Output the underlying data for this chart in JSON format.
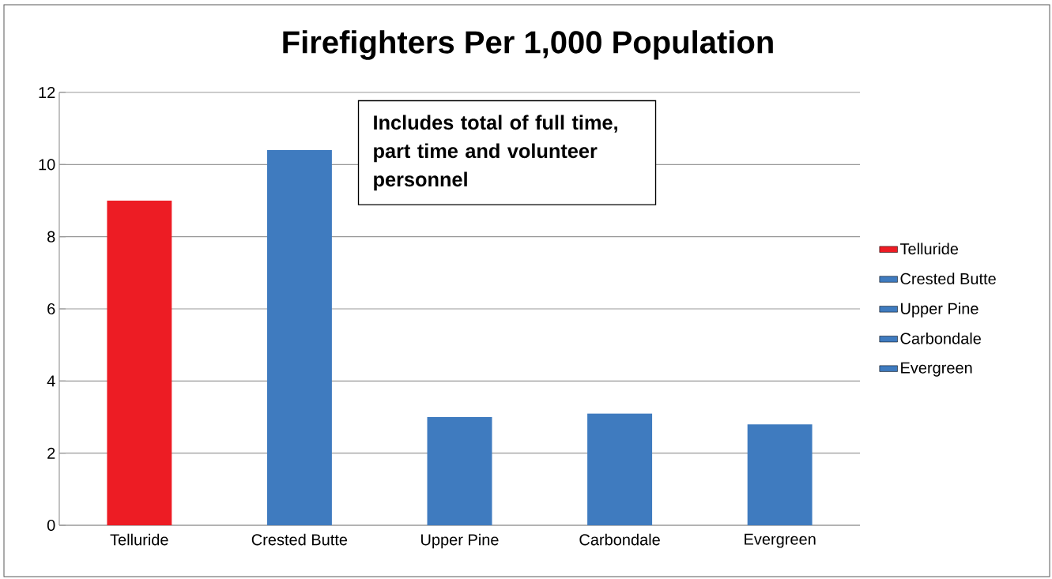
{
  "chart_data": {
    "type": "bar",
    "title": "Firefighters Per 1,000 Population",
    "categories": [
      "Telluride",
      "Crested Butte",
      "Upper Pine",
      "Carbondale",
      "Evergreen"
    ],
    "series": [
      {
        "name": "Telluride",
        "color": "#ed1c24",
        "values": [
          9,
          null,
          null,
          null,
          null
        ]
      },
      {
        "name": "Crested Butte",
        "color": "#3f7bbf",
        "values": [
          null,
          10.4,
          null,
          null,
          null
        ]
      },
      {
        "name": "Upper Pine",
        "color": "#3f7bbf",
        "values": [
          null,
          null,
          3,
          null,
          null
        ]
      },
      {
        "name": "Carbondale",
        "color": "#3f7bbf",
        "values": [
          null,
          null,
          null,
          3.1,
          null
        ]
      },
      {
        "name": "Evergreen",
        "color": "#3f7bbf",
        "values": [
          null,
          null,
          null,
          null,
          2.8
        ]
      }
    ],
    "ylim": [
      0,
      12
    ],
    "yticks": [
      0,
      2,
      4,
      6,
      8,
      10,
      12
    ],
    "grid": "y",
    "legend": "right",
    "annotations": [
      "Includes total of full time, part time and volunteer personnel"
    ]
  }
}
